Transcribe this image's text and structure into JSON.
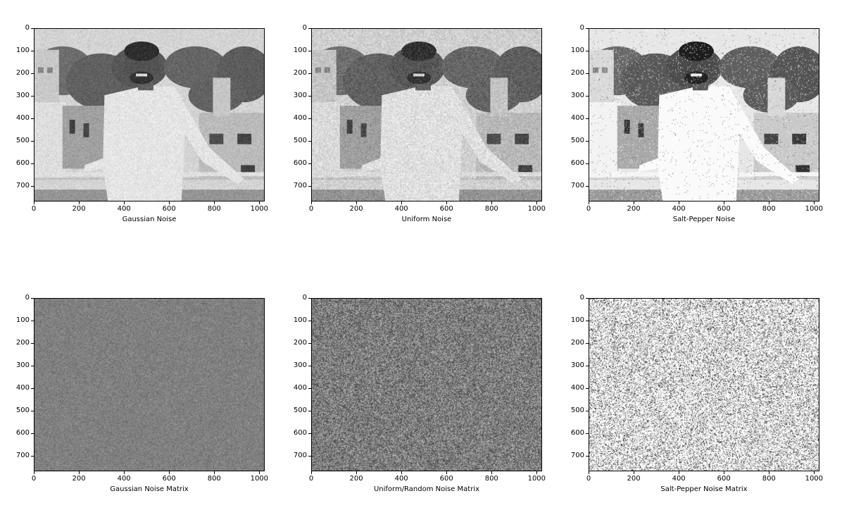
{
  "chart_data": [
    {
      "type": "image",
      "xlabel": "Gaussian Noise",
      "x_ticks": [
        "0",
        "200",
        "400",
        "600",
        "800",
        "1000"
      ],
      "y_ticks": [
        "0",
        "100",
        "200",
        "300",
        "400",
        "500",
        "600",
        "700"
      ],
      "xlim": [
        0,
        1024
      ],
      "ylim": [
        768,
        0
      ],
      "content": "photo",
      "noise": "gaussian"
    },
    {
      "type": "image",
      "xlabel": "Uniform Noise",
      "x_ticks": [
        "0",
        "200",
        "400",
        "600",
        "800",
        "1000"
      ],
      "y_ticks": [
        "0",
        "100",
        "200",
        "300",
        "400",
        "500",
        "600",
        "700"
      ],
      "xlim": [
        0,
        1024
      ],
      "ylim": [
        768,
        0
      ],
      "content": "photo",
      "noise": "uniform"
    },
    {
      "type": "image",
      "xlabel": "Salt-Pepper Noise",
      "x_ticks": [
        "0",
        "200",
        "400",
        "600",
        "800",
        "1000"
      ],
      "y_ticks": [
        "0",
        "100",
        "200",
        "300",
        "400",
        "500",
        "600",
        "700"
      ],
      "xlim": [
        0,
        1024
      ],
      "ylim": [
        768,
        0
      ],
      "content": "photo",
      "noise": "salt-pepper"
    },
    {
      "type": "image",
      "xlabel": "Gaussian Noise Matrix",
      "x_ticks": [
        "0",
        "200",
        "400",
        "600",
        "800",
        "1000"
      ],
      "y_ticks": [
        "0",
        "100",
        "200",
        "300",
        "400",
        "500",
        "600",
        "700"
      ],
      "xlim": [
        0,
        1024
      ],
      "ylim": [
        768,
        0
      ],
      "content": "noise-matrix",
      "noise": "gaussian"
    },
    {
      "type": "image",
      "xlabel": "Uniform/Random Noise Matrix",
      "x_ticks": [
        "0",
        "200",
        "400",
        "600",
        "800",
        "1000"
      ],
      "y_ticks": [
        "0",
        "100",
        "200",
        "300",
        "400",
        "500",
        "600",
        "700"
      ],
      "xlim": [
        0,
        1024
      ],
      "ylim": [
        768,
        0
      ],
      "content": "noise-matrix",
      "noise": "uniform"
    },
    {
      "type": "image",
      "xlabel": "Salt-Pepper Noise Matrix",
      "x_ticks": [
        "0",
        "200",
        "400",
        "600",
        "800",
        "1000"
      ],
      "y_ticks": [
        "0",
        "100",
        "200",
        "300",
        "400",
        "500",
        "600",
        "700"
      ],
      "xlim": [
        0,
        1024
      ],
      "ylim": [
        768,
        0
      ],
      "content": "noise-matrix",
      "noise": "salt-pepper"
    }
  ]
}
